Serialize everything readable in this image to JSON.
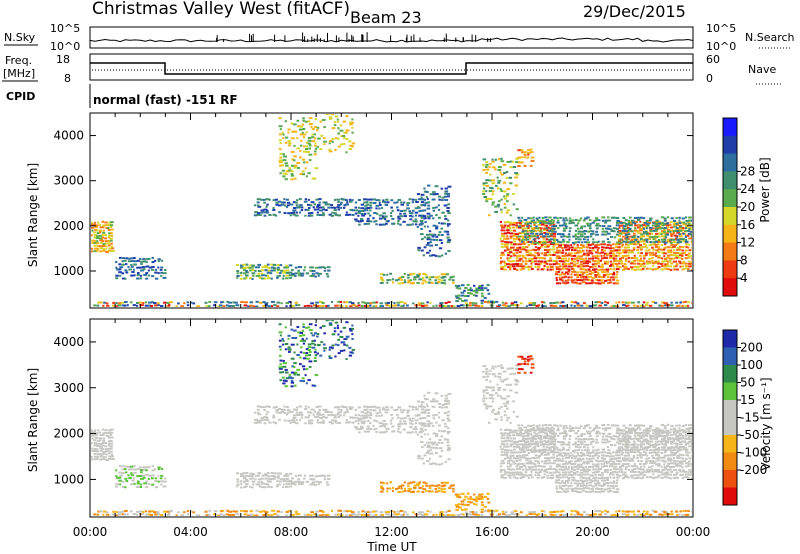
{
  "header": {
    "station": "Christmas Valley West (fitACF)",
    "beam": "Beam 23",
    "date": "29/Dec/2015"
  },
  "panels": {
    "nsky_label": "N.Sky",
    "nsearch_label": "N.Search",
    "nsky_ticks": [
      "10^5",
      "10^0"
    ],
    "nsearch_ticks": [
      "10^5",
      "10^0"
    ],
    "freq_label_line1": "Freq.",
    "freq_label_line2": "[MHz]",
    "freq_ticks": [
      "18",
      "8"
    ],
    "nave_label": "Nave",
    "nave_ticks": [
      "60",
      "0"
    ],
    "cpid_label": "CPID",
    "cpid_text": "normal (fast) -151 RF"
  },
  "chart_data": [
    {
      "type": "heatmap",
      "name": "power-panel",
      "ylabel": "Slant Range [km]",
      "yticks": [
        1000,
        2000,
        3000,
        4000
      ],
      "ylim": [
        180,
        4500
      ],
      "xlim_hours": [
        0,
        24
      ],
      "colorbar": {
        "label": "Power [dB]",
        "ticks": [
          "4",
          "8",
          "12",
          "16",
          "20",
          "24",
          "28"
        ],
        "colors": [
          "#1a1aff",
          "#1f3ea8",
          "#2e6fa0",
          "#3f8f6e",
          "#5aaa4e",
          "#d4d62a",
          "#f5b417",
          "#f47a13",
          "#ee3a10",
          "#e00c0c"
        ]
      }
    },
    {
      "type": "heatmap",
      "name": "velocity-panel",
      "ylabel": "Slant Range [km]",
      "yticks": [
        1000,
        2000,
        3000,
        4000
      ],
      "ylim": [
        180,
        4500
      ],
      "xlim_hours": [
        0,
        24
      ],
      "colorbar": {
        "label": "Velocity [m s⁻¹]",
        "ticks": [
          "200",
          "100",
          "50",
          "15",
          "-15",
          "-50",
          "-100",
          "-200"
        ],
        "colors": [
          "#1f2aa8",
          "#2f5fb0",
          "#2e8a4a",
          "#5cc23a",
          "#c7c7c2",
          "#c7c7c2",
          "#f5b417",
          "#f08a12",
          "#ee5010",
          "#e00c0c"
        ]
      }
    }
  ],
  "xaxis": {
    "ticks": [
      "00:00",
      "04:00",
      "08:00",
      "12:00",
      "16:00",
      "20:00",
      "00:00"
    ],
    "label": "Time UT"
  }
}
